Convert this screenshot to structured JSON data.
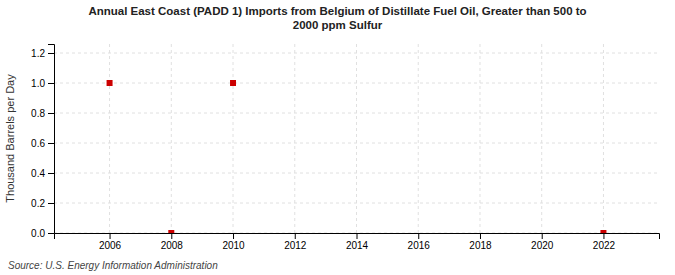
{
  "chart_data": {
    "type": "scatter",
    "title": "Annual East Coast (PADD 1) Imports from Belgium of Distillate Fuel Oil, Greater than 500 to\n2000 ppm Sulfur",
    "ylabel": "Thousand Barrels per Day",
    "source": "Source: U.S. Energy Information Administration",
    "x": [
      2006,
      2008,
      2010,
      2022
    ],
    "values": [
      1.0,
      0.0,
      1.0,
      0.0
    ],
    "color": "#cc0000",
    "marker": "square",
    "xlim": [
      2004.2,
      2023.8
    ],
    "ylim": [
      0.0,
      1.26
    ],
    "xticks": [
      2006,
      2008,
      2010,
      2012,
      2014,
      2016,
      2018,
      2020,
      2022
    ],
    "yticks": [
      {
        "value": 0.0,
        "label": "0.0"
      },
      0.2,
      0.4,
      0.6,
      0.8,
      {
        "value": 1.0,
        "label": "1.0"
      },
      1.2
    ],
    "grid": true
  }
}
